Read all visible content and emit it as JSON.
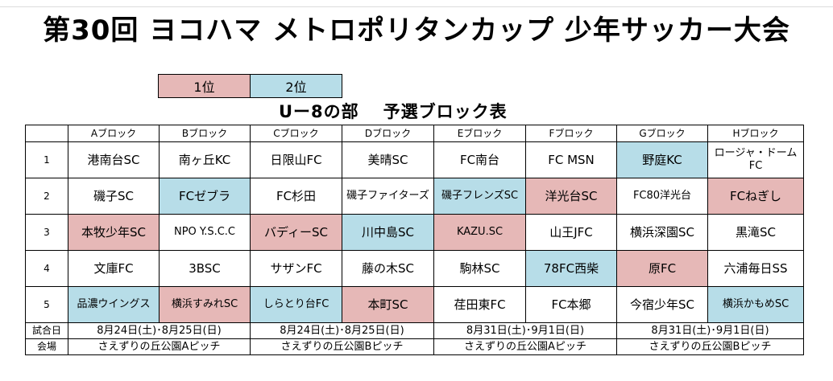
{
  "title": "第30回 ヨコハマ メトロポリタンカップ 少年サッカー大会",
  "legend": {
    "first": "1位",
    "second": "2位"
  },
  "subtitle": {
    "part1": "Uー8の部",
    "part2": "予選ブロック表"
  },
  "colors": {
    "first_place": "#e6b8b7",
    "second_place": "#b7dde8"
  },
  "blocks": [
    "Aブロック",
    "Bブロック",
    "Cブロック",
    "Dブロック",
    "Eブロック",
    "Fブロック",
    "Gブロック",
    "Hブロック"
  ],
  "rows": [
    {
      "no": "1",
      "teams": [
        {
          "name": "港南台SC"
        },
        {
          "name": "南ヶ丘KC"
        },
        {
          "name": "日限山FC"
        },
        {
          "name": "美晴SC"
        },
        {
          "name": "FC南台"
        },
        {
          "name": "FC MSN"
        },
        {
          "name": "野庭KC",
          "rank": "2位"
        },
        {
          "name": "ロージャ・ドームFC"
        }
      ]
    },
    {
      "no": "2",
      "teams": [
        {
          "name": "磯子SC"
        },
        {
          "name": "FCゼブラ",
          "rank": "2位"
        },
        {
          "name": "FC杉田"
        },
        {
          "name": "磯子ファイターズ"
        },
        {
          "name": "磯子フレンズSC",
          "rank": "2位"
        },
        {
          "name": "洋光台SC",
          "rank": "1位"
        },
        {
          "name": "FC80洋光台"
        },
        {
          "name": "FCねぎし",
          "rank": "1位"
        }
      ]
    },
    {
      "no": "3",
      "teams": [
        {
          "name": "本牧少年SC",
          "rank": "1位"
        },
        {
          "name": "NPO Y.S.C.C"
        },
        {
          "name": "バディーSC",
          "rank": "1位"
        },
        {
          "name": "川中島SC",
          "rank": "2位"
        },
        {
          "name": "KAZU.SC",
          "rank": "1位"
        },
        {
          "name": "山王JFC"
        },
        {
          "name": "横浜深園SC"
        },
        {
          "name": "黒滝SC"
        }
      ]
    },
    {
      "no": "4",
      "teams": [
        {
          "name": "文庫FC"
        },
        {
          "name": "3BSC"
        },
        {
          "name": "サザンFC"
        },
        {
          "name": "藤の木SC"
        },
        {
          "name": "駒林SC"
        },
        {
          "name": "78FC西柴",
          "rank": "2位"
        },
        {
          "name": "原FC",
          "rank": "1位"
        },
        {
          "name": "六浦毎日SS"
        }
      ]
    },
    {
      "no": "5",
      "teams": [
        {
          "name": "品濃ウイングス",
          "rank": "2位"
        },
        {
          "name": "横浜すみれSC",
          "rank": "1位"
        },
        {
          "name": "しらとり台FC",
          "rank": "2位"
        },
        {
          "name": "本町SC",
          "rank": "1位"
        },
        {
          "name": "荏田東FC"
        },
        {
          "name": "FC本郷"
        },
        {
          "name": "今宿少年SC"
        },
        {
          "name": "横浜かもめSC",
          "rank": "2位"
        }
      ]
    }
  ],
  "footer": {
    "date_label": "試合日",
    "dates": [
      "8月24日(土)･8月25日(日)",
      "8月24日(土)･8月25日(日)",
      "8月31日(土)･9月1日(日)",
      "8月31日(土)･9月1日(日)"
    ],
    "venue_label": "会場",
    "venues": [
      "さえずりの丘公園Aピッチ",
      "さえずりの丘公園Bピッチ",
      "さえずりの丘公園Aピッチ",
      "さえずりの丘公園Bピッチ"
    ]
  }
}
